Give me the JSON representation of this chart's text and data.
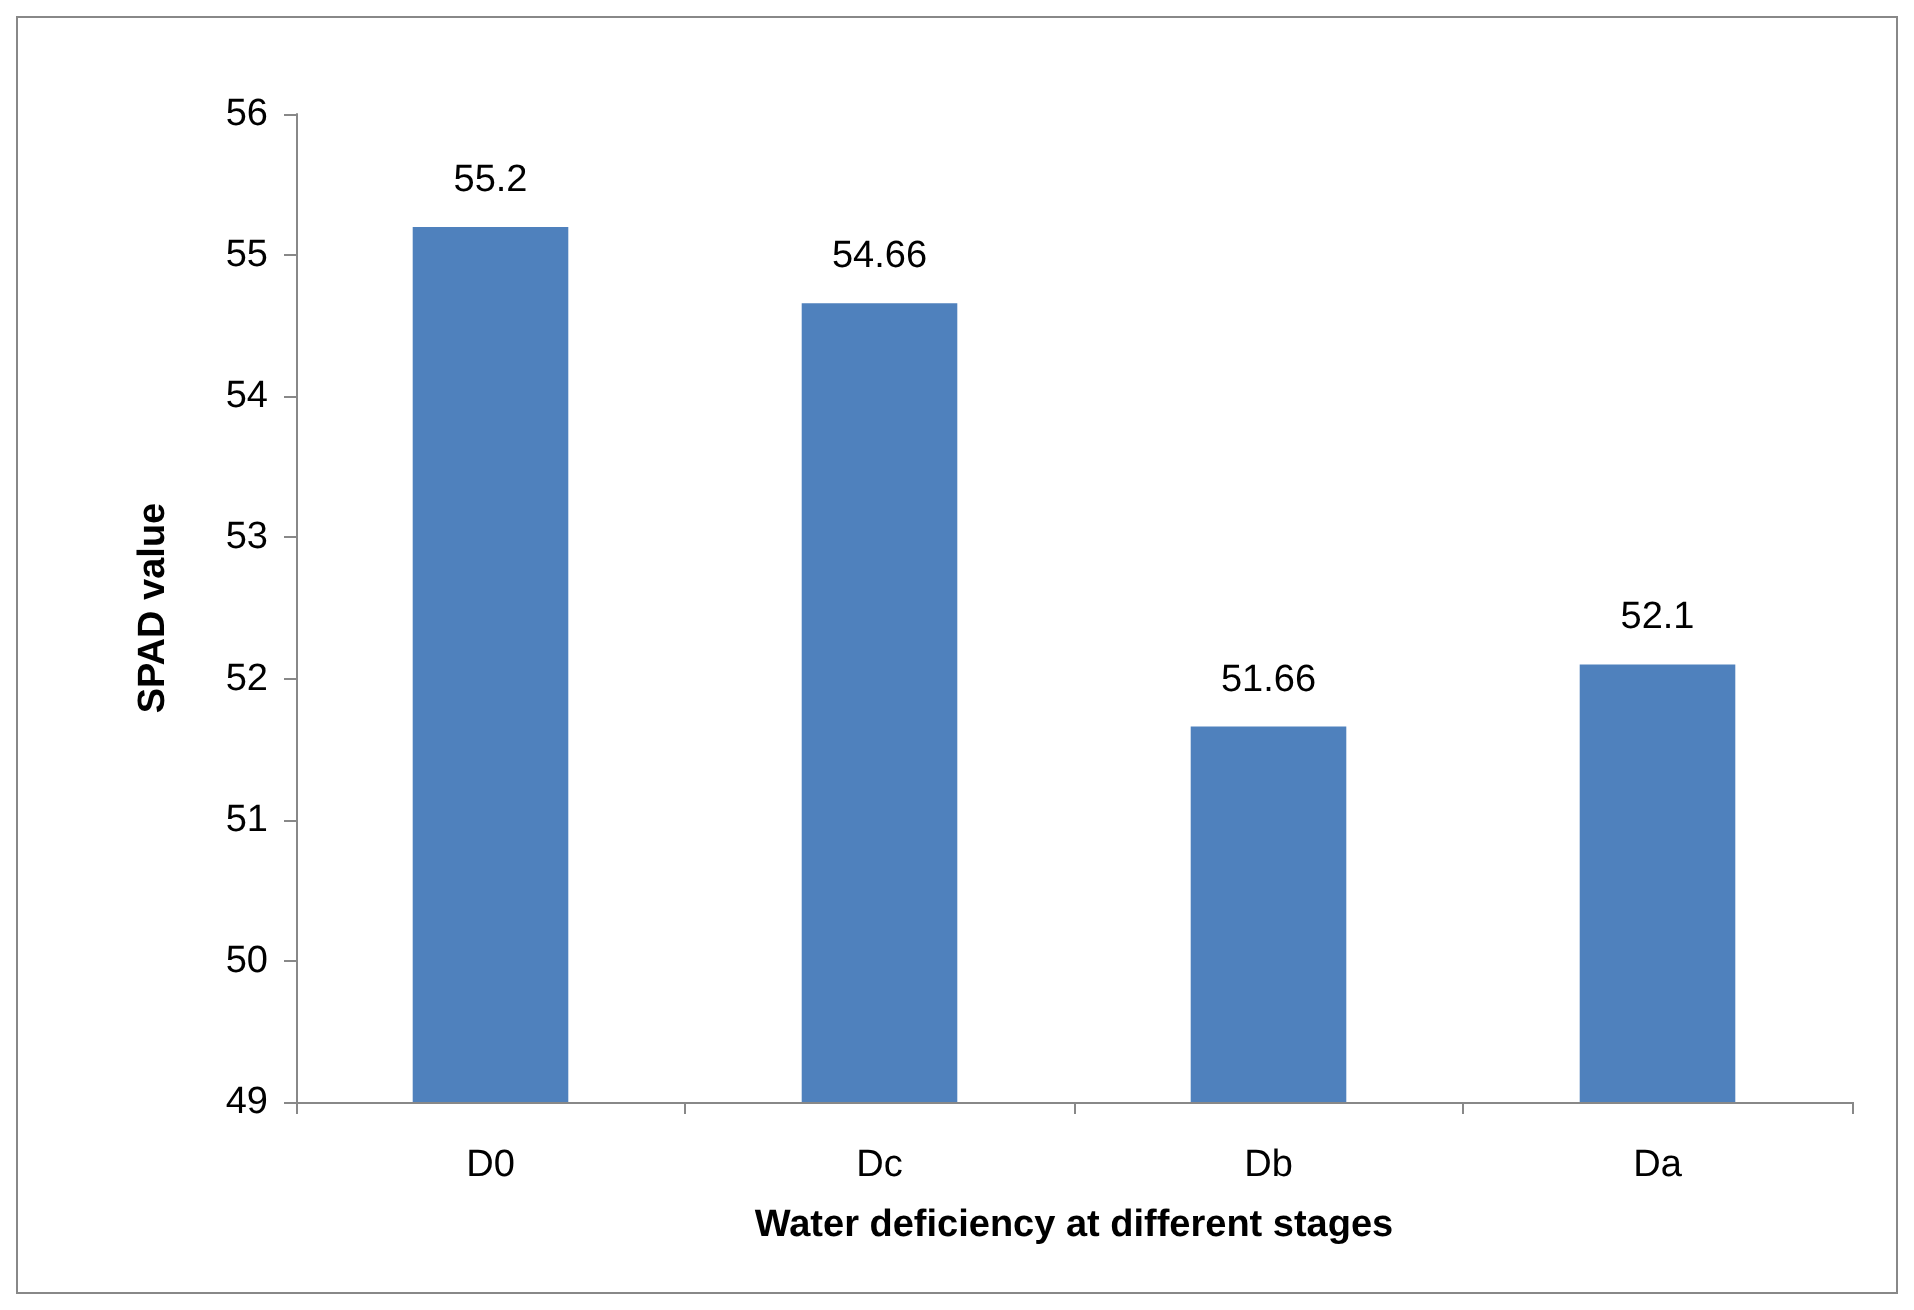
{
  "chart_data": {
    "type": "bar",
    "xlabel": "Water deficiency at different stages",
    "ylabel": "SPAD value",
    "categories": [
      "D0",
      "Dc",
      "Db",
      "Da"
    ],
    "values": [
      55.2,
      54.66,
      51.66,
      52.1
    ],
    "color": "#4f81bd",
    "ylim": [
      49,
      56
    ],
    "yticks": [
      49,
      50,
      51,
      52,
      53,
      54,
      55,
      56
    ],
    "grid": false,
    "data_labels": true
  }
}
